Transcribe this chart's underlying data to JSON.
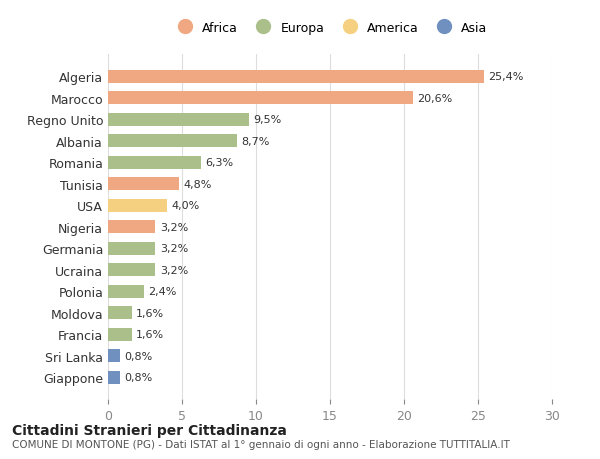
{
  "countries": [
    "Algeria",
    "Marocco",
    "Regno Unito",
    "Albania",
    "Romania",
    "Tunisia",
    "USA",
    "Nigeria",
    "Germania",
    "Ucraina",
    "Polonia",
    "Moldova",
    "Francia",
    "Sri Lanka",
    "Giappone"
  ],
  "values": [
    25.4,
    20.6,
    9.5,
    8.7,
    6.3,
    4.8,
    4.0,
    3.2,
    3.2,
    3.2,
    2.4,
    1.6,
    1.6,
    0.8,
    0.8
  ],
  "labels": [
    "25,4%",
    "20,6%",
    "9,5%",
    "8,7%",
    "6,3%",
    "4,8%",
    "4,0%",
    "3,2%",
    "3,2%",
    "3,2%",
    "2,4%",
    "1,6%",
    "1,6%",
    "0,8%",
    "0,8%"
  ],
  "continents": [
    "Africa",
    "Africa",
    "Europa",
    "Europa",
    "Europa",
    "Africa",
    "America",
    "Africa",
    "Europa",
    "Europa",
    "Europa",
    "Europa",
    "Europa",
    "Asia",
    "Asia"
  ],
  "colors": {
    "Africa": "#F0A882",
    "Europa": "#AABF8A",
    "America": "#F5D080",
    "Asia": "#7090C0"
  },
  "legend_order": [
    "Africa",
    "Europa",
    "America",
    "Asia"
  ],
  "xlim": [
    0,
    30
  ],
  "xticks": [
    0,
    5,
    10,
    15,
    20,
    25,
    30
  ],
  "title": "Cittadini Stranieri per Cittadinanza",
  "subtitle": "COMUNE DI MONTONE (PG) - Dati ISTAT al 1° gennaio di ogni anno - Elaborazione TUTTITALIA.IT",
  "background_color": "#ffffff",
  "bar_height": 0.6
}
